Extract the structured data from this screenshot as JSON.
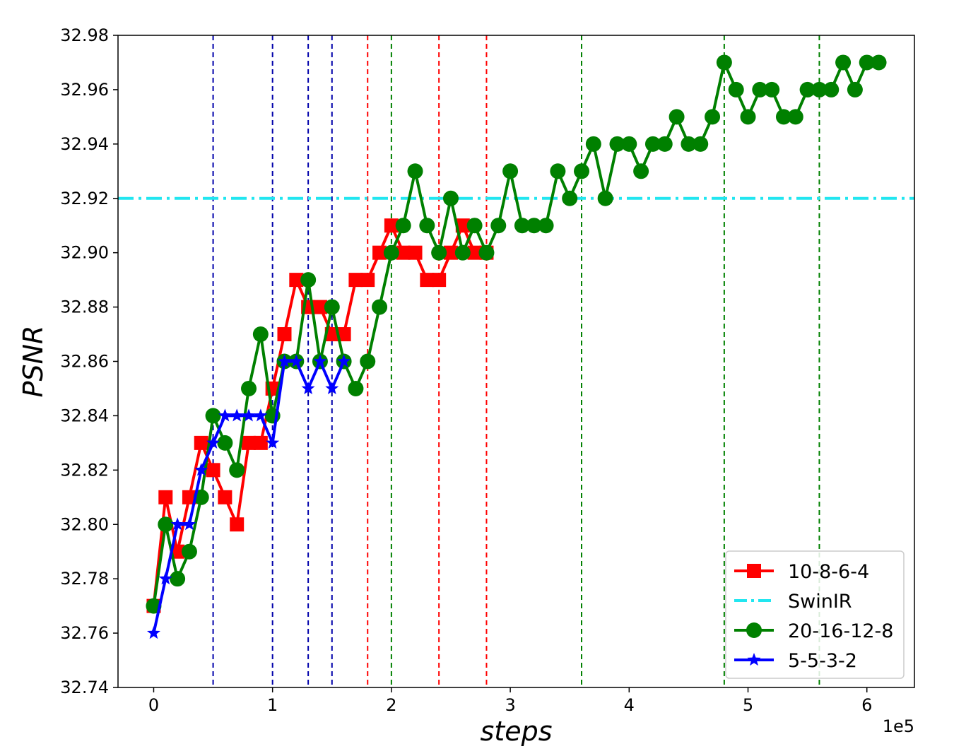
{
  "chart_data": {
    "type": "line",
    "title": "",
    "xlabel": "steps",
    "ylabel": "PSNR",
    "x_offset_label": "1e5",
    "xlim": [
      -0.3,
      6.4
    ],
    "ylim": [
      32.74,
      32.98
    ],
    "xticks": [
      0,
      1,
      2,
      3,
      4,
      5,
      6
    ],
    "yticks": [
      32.74,
      32.76,
      32.78,
      32.8,
      32.82,
      32.84,
      32.86,
      32.88,
      32.9,
      32.92,
      32.94,
      32.96,
      32.98
    ],
    "ytick_labels": [
      "32.74",
      "32.76",
      "32.78",
      "32.80",
      "32.82",
      "32.84",
      "32.86",
      "32.88",
      "32.90",
      "32.92",
      "32.94",
      "32.96",
      "32.98"
    ],
    "grid": false,
    "legend_position": "bottom-right",
    "series": [
      {
        "name": "10-8-6-4",
        "color": "#ff0000",
        "marker": "square",
        "x": [
          0,
          0.1,
          0.2,
          0.3,
          0.4,
          0.5,
          0.6,
          0.7,
          0.8,
          0.9,
          1.0,
          1.1,
          1.2,
          1.3,
          1.4,
          1.5,
          1.6,
          1.7,
          1.8,
          1.9,
          2.0,
          2.1,
          2.2,
          2.3,
          2.4,
          2.5,
          2.6,
          2.7,
          2.8
        ],
        "y": [
          32.77,
          32.81,
          32.79,
          32.81,
          32.83,
          32.82,
          32.81,
          32.8,
          32.83,
          32.83,
          32.85,
          32.87,
          32.89,
          32.88,
          32.88,
          32.87,
          32.87,
          32.89,
          32.89,
          32.9,
          32.91,
          32.9,
          32.9,
          32.89,
          32.89,
          32.9,
          32.91,
          32.9,
          32.9
        ]
      },
      {
        "name": "SwinIR",
        "color": "#22e6f0",
        "style": "dashdot",
        "hline": 32.92
      },
      {
        "name": "20-16-12-8",
        "color": "#008000",
        "marker": "circle",
        "x": [
          0,
          0.1,
          0.2,
          0.3,
          0.4,
          0.5,
          0.6,
          0.7,
          0.8,
          0.9,
          1.0,
          1.1,
          1.2,
          1.3,
          1.4,
          1.5,
          1.6,
          1.7,
          1.8,
          1.9,
          2.0,
          2.1,
          2.2,
          2.3,
          2.4,
          2.5,
          2.6,
          2.7,
          2.8,
          2.9,
          3.0,
          3.1,
          3.2,
          3.3,
          3.4,
          3.5,
          3.6,
          3.7,
          3.8,
          3.9,
          4.0,
          4.1,
          4.2,
          4.3,
          4.4,
          4.5,
          4.6,
          4.7,
          4.8,
          4.9,
          5.0,
          5.1,
          5.2,
          5.3,
          5.4,
          5.5,
          5.6,
          5.7,
          5.8,
          5.9,
          6.0,
          6.1
        ],
        "y": [
          32.77,
          32.8,
          32.78,
          32.79,
          32.81,
          32.84,
          32.83,
          32.82,
          32.85,
          32.87,
          32.84,
          32.86,
          32.86,
          32.89,
          32.86,
          32.88,
          32.86,
          32.85,
          32.86,
          32.88,
          32.9,
          32.91,
          32.93,
          32.91,
          32.9,
          32.92,
          32.9,
          32.91,
          32.9,
          32.91,
          32.93,
          32.91,
          32.91,
          32.91,
          32.93,
          32.92,
          32.93,
          32.94,
          32.92,
          32.94,
          32.94,
          32.93,
          32.94,
          32.94,
          32.95,
          32.94,
          32.94,
          32.95,
          32.97,
          32.96,
          32.95,
          32.96,
          32.96,
          32.95,
          32.95,
          32.96,
          32.96,
          32.96,
          32.97,
          32.96,
          32.97,
          32.97
        ]
      },
      {
        "name": "5-5-3-2",
        "color": "#0000ff",
        "marker": "star",
        "x": [
          0,
          0.1,
          0.2,
          0.3,
          0.4,
          0.5,
          0.6,
          0.7,
          0.8,
          0.9,
          1.0,
          1.1,
          1.2,
          1.3,
          1.4,
          1.5,
          1.6
        ],
        "y": [
          32.76,
          32.78,
          32.8,
          32.8,
          32.82,
          32.83,
          32.84,
          32.84,
          32.84,
          32.84,
          32.83,
          32.86,
          32.86,
          32.85,
          32.86,
          32.85,
          32.86
        ]
      }
    ],
    "vlines": [
      {
        "x": 0.5,
        "color": "#0000aa"
      },
      {
        "x": 1.0,
        "color": "#0000aa"
      },
      {
        "x": 1.3,
        "color": "#0000aa"
      },
      {
        "x": 1.5,
        "color": "#0000aa"
      },
      {
        "x": 1.8,
        "color": "#ff0000"
      },
      {
        "x": 2.4,
        "color": "#ff0000"
      },
      {
        "x": 2.8,
        "color": "#ff0000"
      },
      {
        "x": 2.0,
        "color": "#008000"
      },
      {
        "x": 3.6,
        "color": "#008000"
      },
      {
        "x": 4.8,
        "color": "#008000"
      },
      {
        "x": 5.6,
        "color": "#008000"
      }
    ]
  }
}
